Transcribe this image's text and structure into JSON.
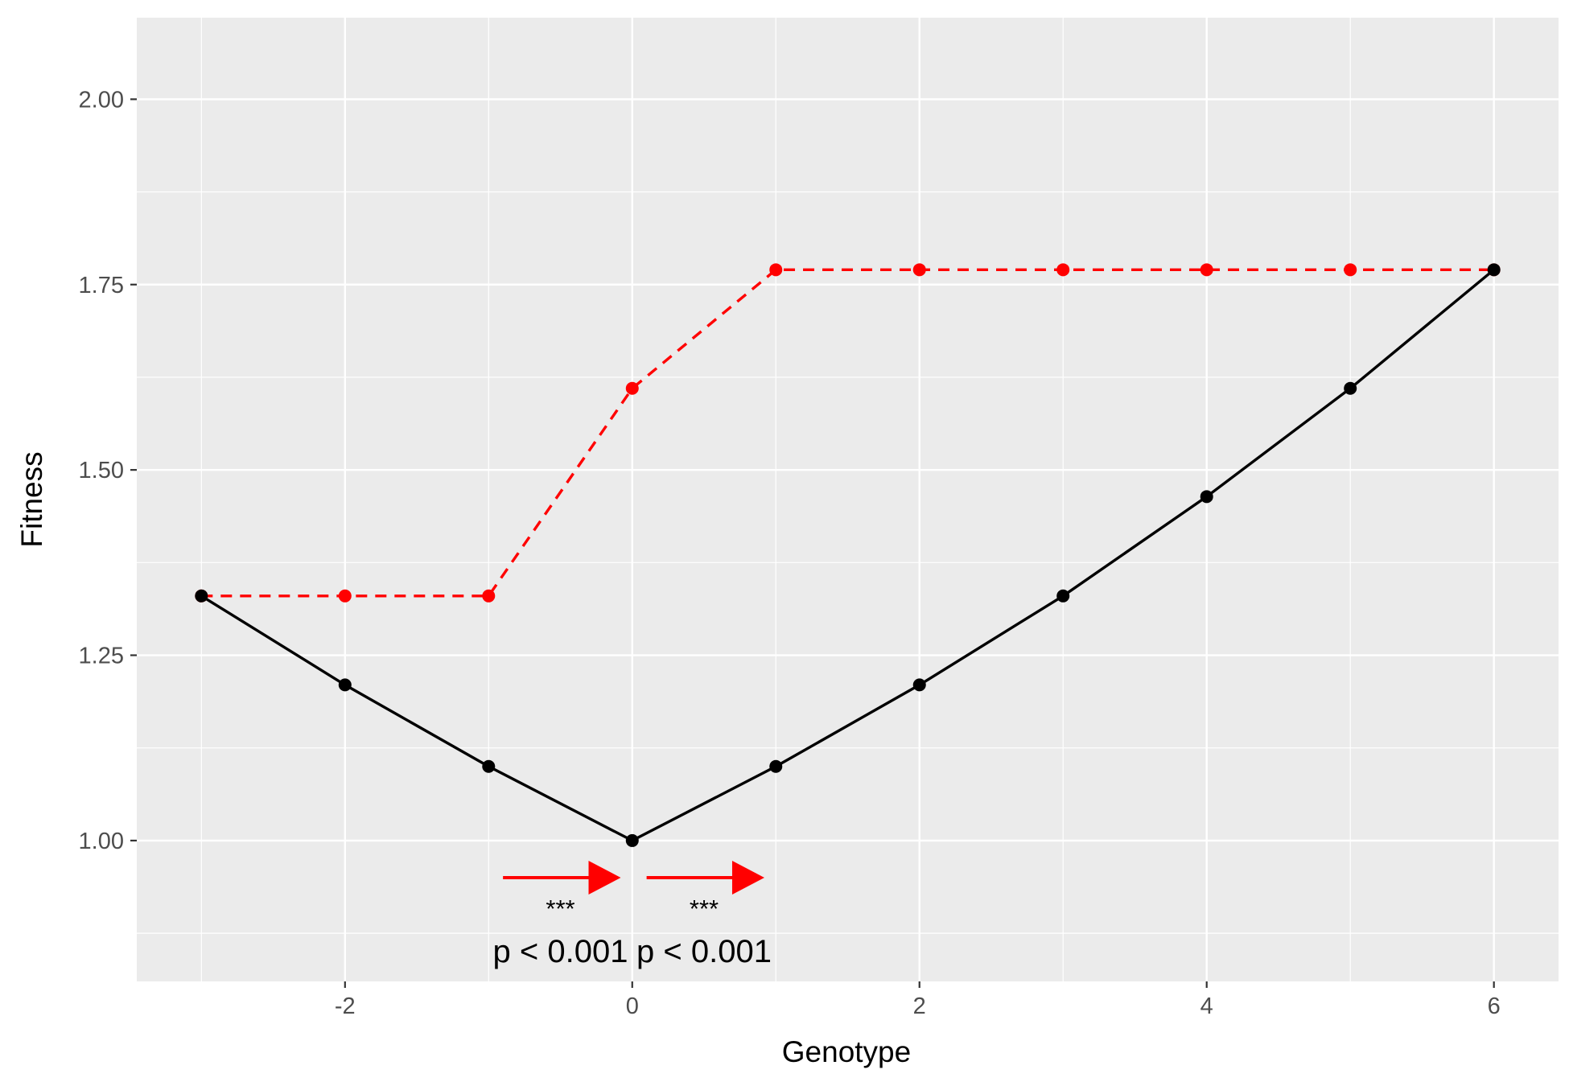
{
  "chart_data": {
    "type": "line",
    "xlabel": "Genotype",
    "ylabel": "Fitness",
    "xlim": [
      -3.45,
      6.45
    ],
    "ylim": [
      0.81,
      2.11
    ],
    "x_ticks": [
      -2,
      0,
      2,
      4,
      6
    ],
    "x_tick_labels": [
      "-2",
      "0",
      "2",
      "4",
      "6"
    ],
    "x_minor_ticks": [
      -3,
      -1,
      1,
      3,
      5
    ],
    "y_ticks": [
      1.0,
      1.25,
      1.5,
      1.75,
      2.0
    ],
    "y_tick_labels": [
      "1.00",
      "1.25",
      "1.50",
      "1.75",
      "2.00"
    ],
    "y_minor_ticks": [
      0.875,
      1.125,
      1.375,
      1.625,
      1.875
    ],
    "grid": true,
    "legend": "none",
    "colors": {
      "panel": "#ebebeb",
      "grid": "#ffffff",
      "black_series": "#000000",
      "red_series": "#ff0000",
      "tick_text": "#4d4d4d"
    },
    "series": [
      {
        "style": "solid",
        "color": "#000000",
        "x": [
          -3,
          -2,
          -1,
          0,
          1,
          2,
          3,
          4,
          5,
          6
        ],
        "y": [
          1.33,
          1.21,
          1.1,
          1.0,
          1.1,
          1.21,
          1.33,
          1.464,
          1.61,
          1.77
        ]
      },
      {
        "style": "dashed",
        "color": "#ff0000",
        "x": [
          -3,
          -2,
          -1,
          0,
          1,
          2,
          3,
          4,
          5,
          6
        ],
        "y": [
          1.33,
          1.33,
          1.33,
          1.61,
          1.77,
          1.77,
          1.77,
          1.77,
          1.77,
          1.77
        ]
      }
    ],
    "annotations": [
      {
        "type": "arrow",
        "x_start": -0.9,
        "x_end": -0.08,
        "y": 0.95,
        "color": "#ff0000",
        "stars": "***",
        "text": "p < 0.001",
        "label_x": -0.5
      },
      {
        "type": "arrow",
        "x_start": 0.1,
        "x_end": 0.92,
        "y": 0.95,
        "color": "#ff0000",
        "stars": "***",
        "text": "p < 0.001",
        "label_x": 0.5
      }
    ]
  }
}
